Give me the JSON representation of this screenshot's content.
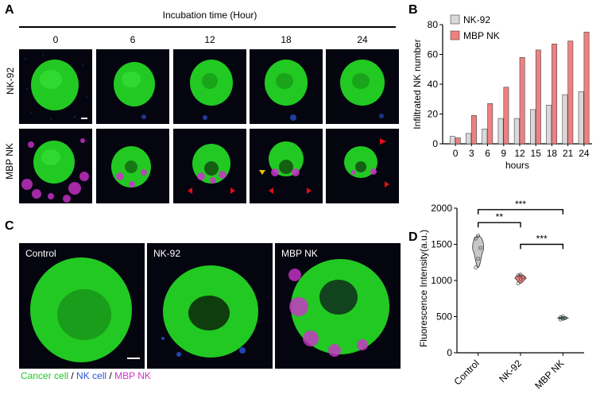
{
  "panels": {
    "a": "A",
    "b": "B",
    "c": "C",
    "d": "D"
  },
  "panel_a": {
    "header": "Incubation time (Hour)",
    "times": [
      "0",
      "6",
      "12",
      "18",
      "24"
    ],
    "rows": [
      "NK-92",
      "MBP NK"
    ]
  },
  "panel_c": {
    "labels": [
      "Control",
      "NK-92",
      "MBP NK"
    ],
    "legend": {
      "cancer": "Cancer cell",
      "sep1": " / ",
      "nk": "NK cell",
      "sep2": " / ",
      "mbp": "MBP NK"
    }
  },
  "colors": {
    "cancer": "#22c922",
    "nk": "#2b55d9",
    "mbp": "#cc33cc",
    "nk92_bar": "#d9d9d9",
    "mbp_bar": "#f08080",
    "arrow_red": "#e01010",
    "arrow_yellow": "#f0c000"
  },
  "chart_data": [
    {
      "type": "bar",
      "categories": [
        "0",
        "3",
        "6",
        "9",
        "12",
        "15",
        "18",
        "21",
        "24"
      ],
      "series": [
        {
          "name": "NK-92",
          "values": [
            5,
            7,
            10,
            17,
            17,
            23,
            26,
            33,
            35
          ]
        },
        {
          "name": "MBP NK",
          "values": [
            4,
            19,
            27,
            38,
            58,
            63,
            67,
            69,
            75
          ]
        }
      ],
      "xlabel": "hours",
      "ylabel": "Infiltrated NK number",
      "ylim": [
        0,
        80
      ],
      "yticks": [
        "0",
        "20",
        "40",
        "60",
        "80"
      ],
      "legend_position": "top-left"
    },
    {
      "type": "violin",
      "categories": [
        "Control",
        "NK-92",
        "MBP NK"
      ],
      "series": [
        {
          "name": "Control",
          "values": [
            1180,
            1300,
            1450,
            1580,
            1620
          ]
        },
        {
          "name": "NK-92",
          "values": [
            960,
            1020,
            1050,
            1070,
            1080
          ]
        },
        {
          "name": "MBP NK",
          "values": [
            460,
            470,
            480,
            490,
            500
          ]
        }
      ],
      "ylabel": "Fluorescence Intensity(a.u.)",
      "ylim": [
        0,
        2000
      ],
      "yticks": [
        "0",
        "500",
        "1000",
        "1500",
        "2000"
      ],
      "significance": [
        {
          "pair": [
            "Control",
            "NK-92"
          ],
          "label": "**"
        },
        {
          "pair": [
            "Control",
            "MBP NK"
          ],
          "label": "***"
        },
        {
          "pair": [
            "NK-92",
            "MBP NK"
          ],
          "label": "***"
        }
      ]
    }
  ]
}
